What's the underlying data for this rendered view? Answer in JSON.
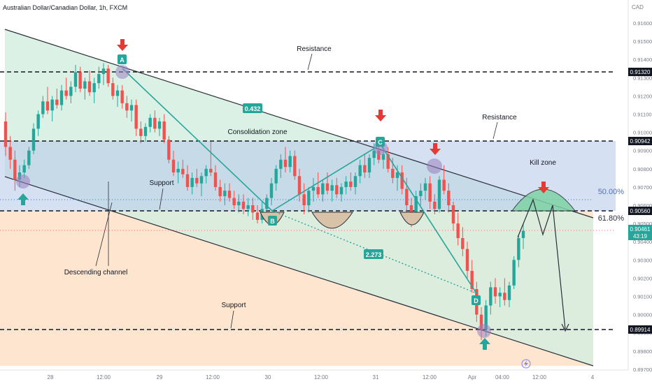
{
  "header": {
    "symbol": "Australian Dollar/Canadian Dollar, 1h, FXCM",
    "currency": "CAD"
  },
  "colors": {
    "up": "#26a69a",
    "down": "#ef5350",
    "teal": "#26a69a",
    "zone_blue": "#b9c9ee",
    "channel_green": "#d8efe2",
    "support_fill": "#fde3cc",
    "dark_label": "#131722"
  },
  "chart_data": {
    "type": "candlestick",
    "title": "Australian Dollar/Canadian Dollar, 1h, FXCM",
    "ylim": [
      0.897,
      0.9163
    ],
    "y_ticks": [
      0.916,
      0.915,
      0.914,
      0.913,
      0.912,
      0.911,
      0.91,
      0.909,
      0.908,
      0.907,
      0.906,
      0.905,
      0.904,
      0.903,
      0.902,
      0.901,
      0.9,
      0.899,
      0.898,
      0.897
    ],
    "y_tick_labels": [
      "0.91600",
      "0.91500",
      "0.91400",
      "0.91300",
      "0.91200",
      "0.91100",
      "0.91000",
      "0.90900",
      "0.90800",
      "0.90700",
      "0.90600",
      "0.90500",
      "0.90400",
      "0.90300",
      "0.90200",
      "0.90100",
      "0.90000",
      "0.89900",
      "0.89800",
      "0.89700"
    ],
    "x_tick_labels": [
      "28",
      "12:00",
      "29",
      "12:00",
      "30",
      "12:00",
      "31",
      "12:00",
      "Apr",
      "04:00",
      "12:00",
      "4"
    ],
    "price_levels": [
      {
        "label": "0.91320",
        "value": 0.9132,
        "style": "dashed"
      },
      {
        "label": "0.90942",
        "value": 0.90942,
        "style": "dashed"
      },
      {
        "label": "0.90560",
        "value": 0.9056,
        "style": "dashed"
      },
      {
        "label": "0.89914",
        "value": 0.89914,
        "style": "dashed"
      }
    ],
    "current_price": {
      "label": "0.90461",
      "countdown": "43:19",
      "value": 0.90461
    },
    "fib_levels": [
      {
        "label": "50.00%",
        "value": 0.90693
      },
      {
        "label": "61.80%",
        "value": 0.90536
      }
    ],
    "zigzag_labels": [
      {
        "label": "0.432"
      },
      {
        "label": "2.273"
      }
    ],
    "pattern_points": [
      "A",
      "B",
      "C",
      "D"
    ],
    "annotations": [
      "Resistance",
      "Resistance",
      "Consolidation zone",
      "Support",
      "Support",
      "Descending channel",
      "Kill zone"
    ],
    "candles": [
      [
        0.9106,
        0.9111,
        0.9087,
        0.9092
      ],
      [
        0.9092,
        0.9098,
        0.908,
        0.9085
      ],
      [
        0.9085,
        0.909,
        0.9068,
        0.9074
      ],
      [
        0.9074,
        0.9082,
        0.907,
        0.9078
      ],
      [
        0.9078,
        0.9085,
        0.9075,
        0.9082
      ],
      [
        0.9082,
        0.9092,
        0.908,
        0.909
      ],
      [
        0.909,
        0.9105,
        0.9088,
        0.9102
      ],
      [
        0.9102,
        0.9112,
        0.9098,
        0.911
      ],
      [
        0.911,
        0.912,
        0.9108,
        0.9117
      ],
      [
        0.9117,
        0.9125,
        0.911,
        0.9112
      ],
      [
        0.9112,
        0.912,
        0.9106,
        0.9118
      ],
      [
        0.9118,
        0.9124,
        0.9113,
        0.9115
      ],
      [
        0.9115,
        0.9126,
        0.9112,
        0.9123
      ],
      [
        0.9123,
        0.913,
        0.9118,
        0.912
      ],
      [
        0.912,
        0.9128,
        0.9116,
        0.9125
      ],
      [
        0.9125,
        0.9137,
        0.9122,
        0.9133
      ],
      [
        0.9133,
        0.9136,
        0.9122,
        0.9124
      ],
      [
        0.9124,
        0.913,
        0.9118,
        0.9128
      ],
      [
        0.9128,
        0.9134,
        0.912,
        0.9122
      ],
      [
        0.9122,
        0.913,
        0.9116,
        0.9127
      ],
      [
        0.9127,
        0.9136,
        0.9124,
        0.9132
      ],
      [
        0.9132,
        0.9138,
        0.9126,
        0.9135
      ],
      [
        0.9135,
        0.9137,
        0.9125,
        0.9127
      ],
      [
        0.9127,
        0.913,
        0.9118,
        0.912
      ],
      [
        0.912,
        0.9126,
        0.9114,
        0.9123
      ],
      [
        0.9123,
        0.9126,
        0.9113,
        0.9116
      ],
      [
        0.9116,
        0.912,
        0.9108,
        0.9112
      ],
      [
        0.9112,
        0.9118,
        0.9106,
        0.9115
      ],
      [
        0.9115,
        0.9118,
        0.9098,
        0.9102
      ],
      [
        0.9102,
        0.9106,
        0.9094,
        0.9098
      ],
      [
        0.9098,
        0.9105,
        0.9095,
        0.9103
      ],
      [
        0.9103,
        0.911,
        0.91,
        0.9108
      ],
      [
        0.9108,
        0.9112,
        0.91,
        0.9102
      ],
      [
        0.9102,
        0.9108,
        0.9098,
        0.9106
      ],
      [
        0.9106,
        0.911,
        0.9094,
        0.9096
      ],
      [
        0.9096,
        0.9098,
        0.9083,
        0.9085
      ],
      [
        0.9085,
        0.909,
        0.9076,
        0.9078
      ],
      [
        0.9078,
        0.9084,
        0.9072,
        0.908
      ],
      [
        0.908,
        0.9085,
        0.9075,
        0.9077
      ],
      [
        0.9077,
        0.9082,
        0.9068,
        0.907
      ],
      [
        0.907,
        0.9078,
        0.9066,
        0.9075
      ],
      [
        0.9075,
        0.908,
        0.907,
        0.9072
      ],
      [
        0.9072,
        0.9078,
        0.9065,
        0.9076
      ],
      [
        0.9076,
        0.9082,
        0.9072,
        0.908
      ],
      [
        0.908,
        0.9095,
        0.9076,
        0.9078
      ],
      [
        0.9078,
        0.9082,
        0.9068,
        0.907
      ],
      [
        0.907,
        0.9074,
        0.9062,
        0.9065
      ],
      [
        0.9065,
        0.9072,
        0.906,
        0.9068
      ],
      [
        0.9068,
        0.9072,
        0.9062,
        0.9064
      ],
      [
        0.9064,
        0.9068,
        0.9058,
        0.906
      ],
      [
        0.906,
        0.9066,
        0.9056,
        0.9062
      ],
      [
        0.9062,
        0.9066,
        0.9055,
        0.9058
      ],
      [
        0.9058,
        0.9064,
        0.9054,
        0.906
      ],
      [
        0.906,
        0.9064,
        0.9052,
        0.9056
      ],
      [
        0.9056,
        0.906,
        0.905,
        0.9052
      ],
      [
        0.9052,
        0.9062,
        0.905,
        0.9058
      ],
      [
        0.9058,
        0.9066,
        0.9055,
        0.9064
      ],
      [
        0.9064,
        0.9075,
        0.906,
        0.9072
      ],
      [
        0.9072,
        0.9082,
        0.9068,
        0.908
      ],
      [
        0.908,
        0.9088,
        0.9075,
        0.9085
      ],
      [
        0.9085,
        0.9092,
        0.9078,
        0.9081
      ],
      [
        0.9081,
        0.909,
        0.9078,
        0.9087
      ],
      [
        0.9087,
        0.909,
        0.9074,
        0.9076
      ],
      [
        0.9076,
        0.908,
        0.9062,
        0.9066
      ],
      [
        0.9066,
        0.9072,
        0.9055,
        0.906
      ],
      [
        0.906,
        0.907,
        0.9056,
        0.9068
      ],
      [
        0.9068,
        0.9075,
        0.9062,
        0.907
      ],
      [
        0.907,
        0.9078,
        0.9064,
        0.9066
      ],
      [
        0.9066,
        0.9074,
        0.9062,
        0.9072
      ],
      [
        0.9072,
        0.9078,
        0.9066,
        0.9068
      ],
      [
        0.9068,
        0.9074,
        0.9062,
        0.9071
      ],
      [
        0.9071,
        0.9075,
        0.9064,
        0.9066
      ],
      [
        0.9066,
        0.9072,
        0.9062,
        0.907
      ],
      [
        0.907,
        0.9076,
        0.9066,
        0.9073
      ],
      [
        0.9073,
        0.9078,
        0.9068,
        0.907
      ],
      [
        0.907,
        0.9078,
        0.9066,
        0.9076
      ],
      [
        0.9076,
        0.9085,
        0.9072,
        0.9082
      ],
      [
        0.9082,
        0.9088,
        0.9075,
        0.9078
      ],
      [
        0.9078,
        0.9088,
        0.9075,
        0.9086
      ],
      [
        0.9086,
        0.9094,
        0.9082,
        0.909
      ],
      [
        0.909,
        0.9095,
        0.9083,
        0.9085
      ],
      [
        0.9085,
        0.9092,
        0.908,
        0.9088
      ],
      [
        0.9088,
        0.9092,
        0.9078,
        0.908
      ],
      [
        0.908,
        0.9086,
        0.9072,
        0.9075
      ],
      [
        0.9075,
        0.9082,
        0.9068,
        0.9078
      ],
      [
        0.9078,
        0.9082,
        0.9066,
        0.9069
      ],
      [
        0.9069,
        0.9075,
        0.9056,
        0.906
      ],
      [
        0.906,
        0.9064,
        0.9048,
        0.9052
      ],
      [
        0.9052,
        0.9068,
        0.905,
        0.9065
      ],
      [
        0.9065,
        0.9072,
        0.906,
        0.9068
      ],
      [
        0.9068,
        0.9075,
        0.9063,
        0.9072
      ],
      [
        0.9072,
        0.9076,
        0.9058,
        0.9062
      ],
      [
        0.9062,
        0.9066,
        0.9055,
        0.9058
      ],
      [
        0.9058,
        0.9076,
        0.9056,
        0.9074
      ],
      [
        0.9074,
        0.9082,
        0.9066,
        0.9068
      ],
      [
        0.9068,
        0.9072,
        0.9056,
        0.906
      ],
      [
        0.906,
        0.9062,
        0.9046,
        0.905
      ],
      [
        0.905,
        0.9056,
        0.9038,
        0.9042
      ],
      [
        0.9042,
        0.9048,
        0.9032,
        0.9036
      ],
      [
        0.9036,
        0.904,
        0.902,
        0.9024
      ],
      [
        0.9024,
        0.903,
        0.9012,
        0.9014
      ],
      [
        0.9014,
        0.9018,
        0.8996,
        0.9
      ],
      [
        0.9,
        0.9004,
        0.8986,
        0.8992
      ],
      [
        0.8992,
        0.9008,
        0.8988,
        0.9005
      ],
      [
        0.9005,
        0.9018,
        0.9,
        0.9015
      ],
      [
        0.9015,
        0.902,
        0.9006,
        0.901
      ],
      [
        0.901,
        0.9015,
        0.9004,
        0.9012
      ],
      [
        0.9012,
        0.902,
        0.9005,
        0.9008
      ],
      [
        0.9008,
        0.9018,
        0.9004,
        0.9016
      ],
      [
        0.9016,
        0.9032,
        0.9014,
        0.903
      ],
      [
        0.903,
        0.9044,
        0.9026,
        0.9042
      ],
      [
        0.9042,
        0.905,
        0.9036,
        0.9046
      ]
    ]
  }
}
